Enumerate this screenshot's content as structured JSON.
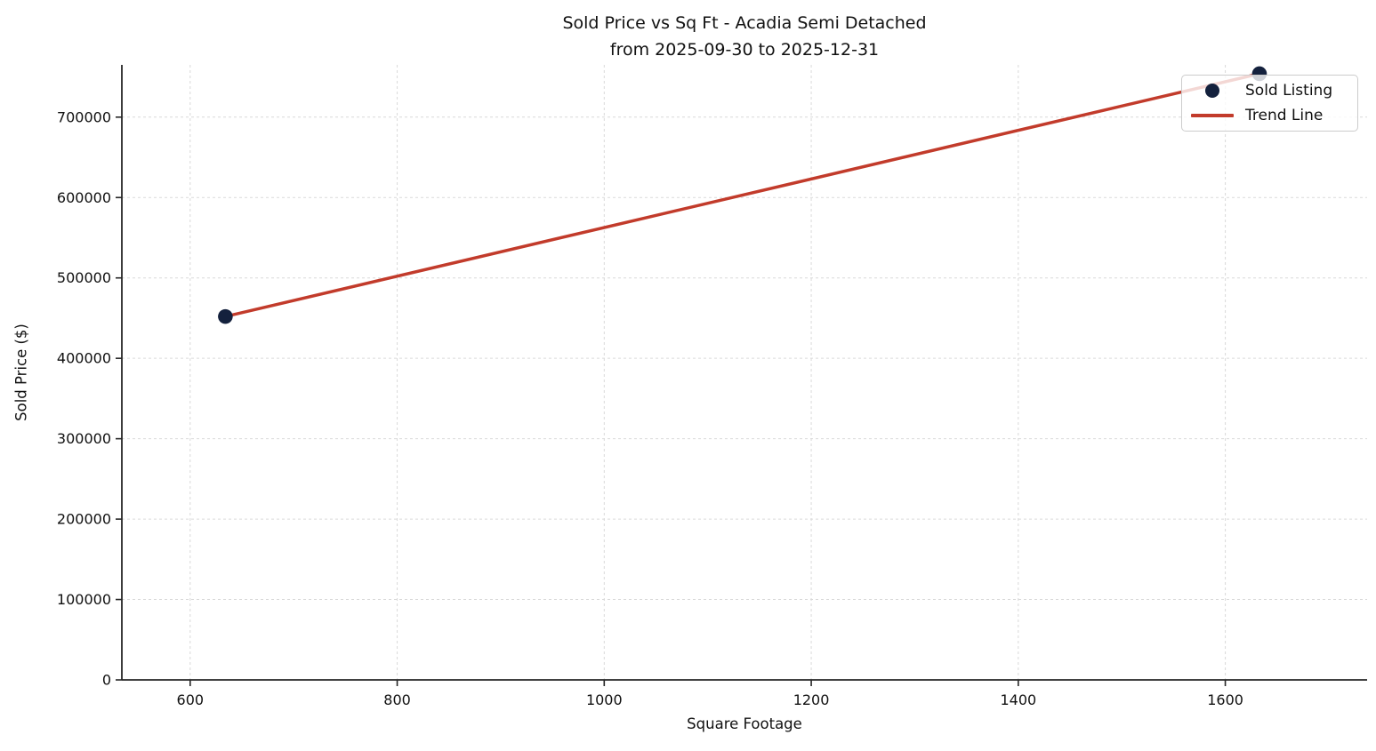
{
  "chart_data": {
    "type": "scatter",
    "title": "Sold Price vs Sq Ft - Acadia Semi Detached",
    "subtitle": "from 2025-09-30 to 2025-12-31",
    "xlabel": "Square Footage",
    "ylabel": "Sold Price ($)",
    "xlim": [
      534,
      1737
    ],
    "ylim": [
      0,
      765000
    ],
    "x_ticks": [
      600,
      800,
      1000,
      1200,
      1400,
      1600
    ],
    "y_ticks": [
      0,
      100000,
      200000,
      300000,
      400000,
      500000,
      600000,
      700000
    ],
    "grid": "dashed-both-axes",
    "legend_position": "upper-right",
    "series": [
      {
        "name": "Sold Listing",
        "kind": "scatter",
        "x": [
          634,
          1633
        ],
        "y": [
          452000,
          754000
        ]
      },
      {
        "name": "Trend Line",
        "kind": "line",
        "x": [
          634,
          1633
        ],
        "y": [
          452000,
          754000
        ]
      }
    ],
    "legend": [
      {
        "label": "Sold Listing",
        "marker": "dot"
      },
      {
        "label": "Trend Line",
        "marker": "line"
      }
    ],
    "colors": {
      "point": "#14213d",
      "trend": "#c23b2b",
      "grid": "#d9d9d9",
      "spine": "#262626",
      "text": "#111111"
    }
  }
}
